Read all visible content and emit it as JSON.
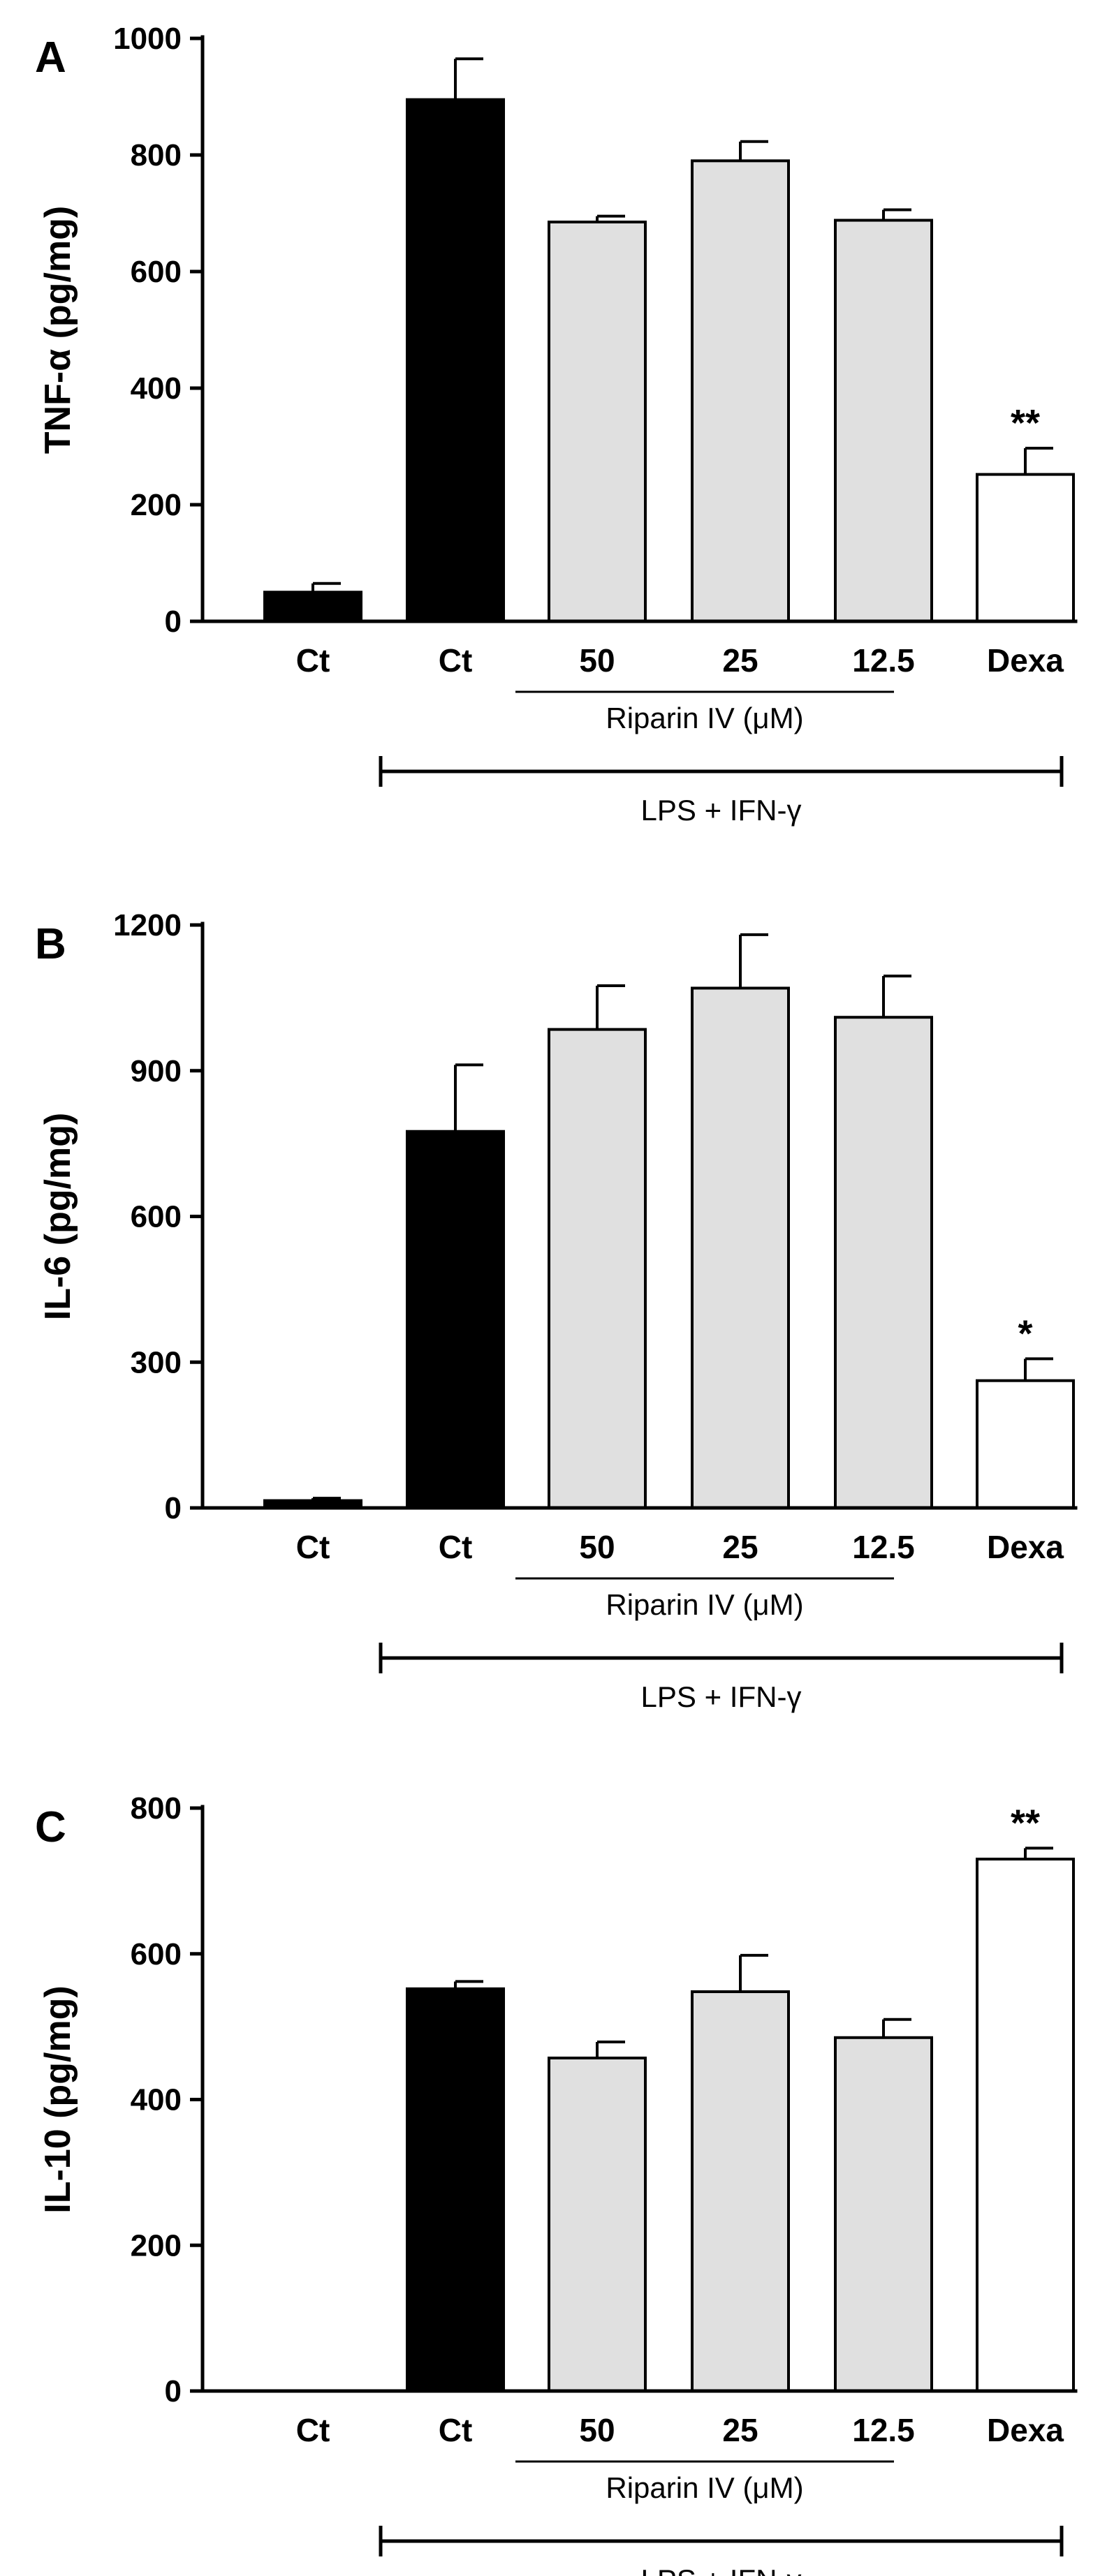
{
  "chart_data": [
    {
      "type": "bar",
      "panel": "A",
      "ylabel": "TNF-α (pg/mg)",
      "ylim": [
        0,
        1000
      ],
      "yticks": [
        "0",
        "200",
        "400",
        "600",
        "800",
        "1000"
      ],
      "categories": [
        "Ct",
        "Ct",
        "50",
        "25",
        "12.5",
        "Dexa"
      ],
      "values": [
        50,
        895,
        685,
        790,
        688,
        252
      ],
      "errors": [
        15,
        70,
        10,
        33,
        18,
        45
      ],
      "significance": [
        "",
        "",
        "",
        "",
        "",
        "**"
      ],
      "group_labels": {
        "riparin": "Riparin IV (μM)",
        "stimulus": "LPS + IFN-γ"
      }
    },
    {
      "type": "bar",
      "panel": "B",
      "ylabel": "IL-6 (pg/mg)",
      "ylim": [
        0,
        1200
      ],
      "yticks": [
        "0",
        "300",
        "600",
        "900",
        "1200"
      ],
      "categories": [
        "Ct",
        "Ct",
        "50",
        "25",
        "12.5",
        "Dexa"
      ],
      "values": [
        15,
        775,
        985,
        1070,
        1010,
        262
      ],
      "errors": [
        5,
        137,
        90,
        110,
        85,
        45
      ],
      "significance": [
        "",
        "",
        "",
        "",
        "",
        "*"
      ],
      "group_labels": {
        "riparin": "Riparin IV (μM)",
        "stimulus": "LPS + IFN-γ"
      }
    },
    {
      "type": "bar",
      "panel": "C",
      "ylabel": "IL-10 (pg/mg)",
      "ylim": [
        0,
        800
      ],
      "yticks": [
        "0",
        "200",
        "400",
        "600",
        "800"
      ],
      "categories": [
        "Ct",
        "Ct",
        "50",
        "25",
        "12.5",
        "Dexa"
      ],
      "values": [
        0,
        552,
        457,
        548,
        485,
        730
      ],
      "errors": [
        0,
        10,
        22,
        50,
        25,
        15
      ],
      "significance": [
        "",
        "",
        "",
        "",
        "",
        "**"
      ],
      "group_labels": {
        "riparin": "Riparin IV (μM)",
        "stimulus": "LPS + IFN-γ"
      }
    }
  ],
  "colors": {
    "control": "#000000",
    "riparin": "#e0e0e0",
    "dexa": "#ffffff",
    "axis": "#000000"
  }
}
